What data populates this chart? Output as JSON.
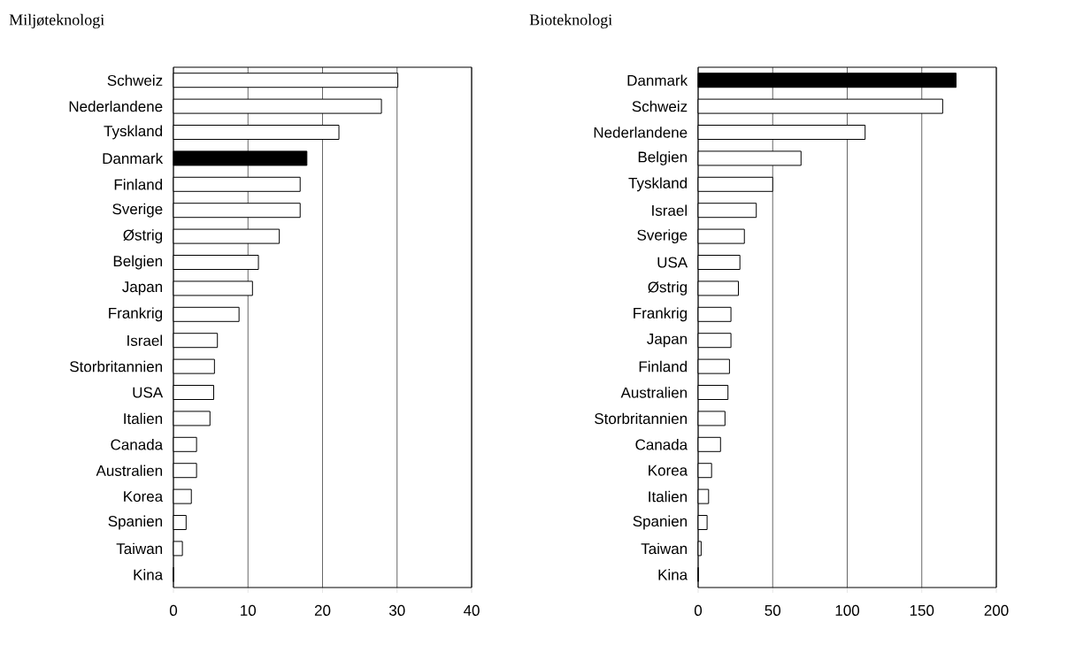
{
  "chart_data": [
    {
      "type": "bar",
      "orientation": "horizontal",
      "title": "Miljøteknologi",
      "grid": "x",
      "xlim": [
        0,
        40
      ],
      "xticks": [
        0,
        10,
        20,
        30,
        40
      ],
      "categories": [
        "Schweiz",
        "Nederlandene",
        "Tyskland",
        "Danmark",
        "Finland",
        "Sverige",
        "Østrig",
        "Belgien",
        "Japan",
        "Frankrig",
        "Israel",
        "Storbritannien",
        "USA",
        "Italien",
        "Canada",
        "Australien",
        "Korea",
        "Spanien",
        "Taiwan",
        "Kina"
      ],
      "values": [
        30.1,
        27.9,
        22.2,
        17.9,
        17.0,
        17.0,
        14.2,
        11.4,
        10.6,
        8.8,
        5.9,
        5.5,
        5.4,
        4.9,
        3.1,
        3.1,
        2.4,
        1.7,
        1.2,
        0
      ],
      "colors": [
        "#ffffff",
        "#ffffff",
        "#ffffff",
        "#000000",
        "#ffffff",
        "#ffffff",
        "#ffffff",
        "#ffffff",
        "#ffffff",
        "#ffffff",
        "#ffffff",
        "#ffffff",
        "#ffffff",
        "#ffffff",
        "#ffffff",
        "#ffffff",
        "#ffffff",
        "#ffffff",
        "#ffffff",
        "#ffffff"
      ]
    },
    {
      "type": "bar",
      "orientation": "horizontal",
      "title": "Bioteknologi",
      "grid": "x",
      "xlim": [
        0,
        200
      ],
      "xticks": [
        0,
        50,
        100,
        150,
        200
      ],
      "categories": [
        "Danmark",
        "Schweiz",
        "Nederlandene",
        "Belgien",
        "Tyskland",
        "Israel",
        "Sverige",
        "USA",
        "Østrig",
        "Frankrig",
        "Japan",
        "Finland",
        "Australien",
        "Storbritannien",
        "Canada",
        "Korea",
        "Italien",
        "Spanien",
        "Taiwan",
        "Kina"
      ],
      "values": [
        173,
        164,
        112,
        69,
        50,
        39,
        31,
        28,
        27,
        22,
        22,
        21,
        20,
        18,
        15,
        9,
        7,
        6,
        2,
        0
      ],
      "colors": [
        "#000000",
        "#ffffff",
        "#ffffff",
        "#ffffff",
        "#ffffff",
        "#ffffff",
        "#ffffff",
        "#ffffff",
        "#ffffff",
        "#ffffff",
        "#ffffff",
        "#ffffff",
        "#ffffff",
        "#ffffff",
        "#ffffff",
        "#ffffff",
        "#ffffff",
        "#ffffff",
        "#ffffff",
        "#ffffff"
      ]
    }
  ]
}
